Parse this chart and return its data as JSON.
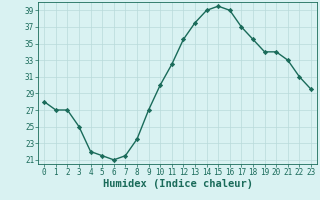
{
  "x": [
    0,
    1,
    2,
    3,
    4,
    5,
    6,
    7,
    8,
    9,
    10,
    11,
    12,
    13,
    14,
    15,
    16,
    17,
    18,
    19,
    20,
    21,
    22,
    23
  ],
  "y": [
    28,
    27,
    27,
    25,
    22,
    21.5,
    21,
    21.5,
    23.5,
    27,
    30,
    32.5,
    35.5,
    37.5,
    39,
    39.5,
    39,
    37,
    35.5,
    34,
    34,
    33,
    31,
    29.5
  ],
  "line_color": "#1a6b5a",
  "marker": "D",
  "marker_size": 2.2,
  "bg_color": "#d9f2f2",
  "grid_color": "#b8dada",
  "xlabel": "Humidex (Indice chaleur)",
  "xlabel_color": "#1a6b5a",
  "xlim": [
    -0.5,
    23.5
  ],
  "ylim": [
    20.5,
    40
  ],
  "yticks": [
    21,
    23,
    25,
    27,
    29,
    31,
    33,
    35,
    37,
    39
  ],
  "xticks": [
    0,
    1,
    2,
    3,
    4,
    5,
    6,
    7,
    8,
    9,
    10,
    11,
    12,
    13,
    14,
    15,
    16,
    17,
    18,
    19,
    20,
    21,
    22,
    23
  ],
  "tick_color": "#1a6b5a",
  "tick_fontsize": 5.5,
  "xlabel_fontsize": 7.5,
  "line_width": 1.0
}
